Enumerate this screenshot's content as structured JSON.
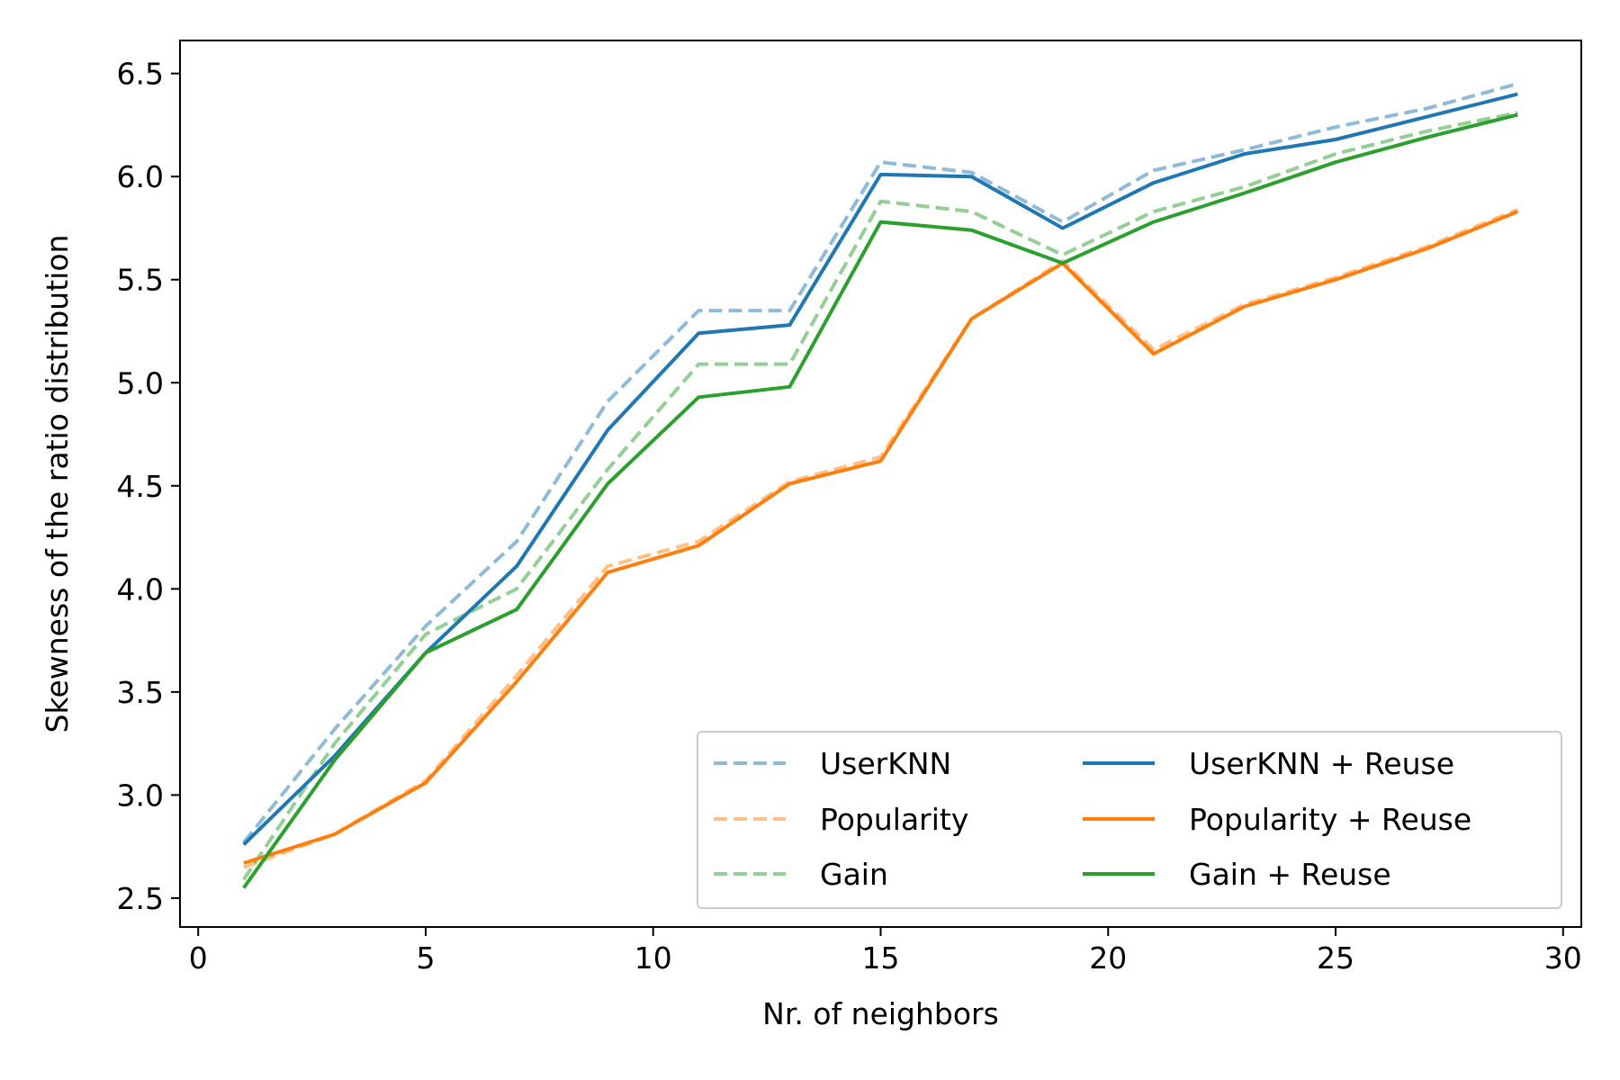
{
  "chart_data": {
    "type": "line",
    "xlabel": "Nr. of neighbors",
    "ylabel": "Skewness of the ratio distribution",
    "xlim": [
      -0.4,
      30.4
    ],
    "ylim": [
      2.36,
      6.66
    ],
    "xticks": [
      0,
      5,
      10,
      15,
      20,
      25,
      30
    ],
    "yticks": [
      2.5,
      3.0,
      3.5,
      4.0,
      4.5,
      5.0,
      5.5,
      6.0,
      6.5
    ],
    "x": [
      1,
      3,
      5,
      7,
      9,
      11,
      13,
      15,
      17,
      19,
      21,
      23,
      25,
      27,
      29
    ],
    "grid": false,
    "legend_position": "lower-right",
    "series": [
      {
        "name": "UserKNN",
        "style": "dashed",
        "color": "#1f77b4",
        "opacity": 0.5,
        "values": [
          2.77,
          3.32,
          3.82,
          4.23,
          4.91,
          5.35,
          5.35,
          6.07,
          6.02,
          5.78,
          6.03,
          6.13,
          6.24,
          6.33,
          6.45
        ]
      },
      {
        "name": "Popularity",
        "style": "dashed",
        "color": "#ff7f0e",
        "opacity": 0.5,
        "values": [
          2.65,
          2.81,
          3.07,
          3.58,
          4.11,
          4.23,
          4.52,
          4.64,
          5.31,
          5.59,
          5.16,
          5.38,
          5.51,
          5.66,
          5.84
        ]
      },
      {
        "name": "Gain",
        "style": "dashed",
        "color": "#2ca02c",
        "opacity": 0.5,
        "values": [
          2.59,
          3.25,
          3.78,
          4.0,
          4.58,
          5.09,
          5.09,
          5.88,
          5.83,
          5.62,
          5.83,
          5.95,
          6.11,
          6.22,
          6.31
        ]
      },
      {
        "name": "UserKNN + Reuse",
        "style": "solid",
        "color": "#1f77b4",
        "opacity": 1,
        "values": [
          2.76,
          3.19,
          3.69,
          4.11,
          4.77,
          5.24,
          5.28,
          6.01,
          6.0,
          5.75,
          5.97,
          6.11,
          6.18,
          6.29,
          6.4
        ]
      },
      {
        "name": "Popularity + Reuse",
        "style": "solid",
        "color": "#ff7f0e",
        "opacity": 1,
        "values": [
          2.67,
          2.81,
          3.06,
          3.55,
          4.08,
          4.21,
          4.51,
          4.62,
          5.31,
          5.58,
          5.14,
          5.37,
          5.5,
          5.65,
          5.83
        ]
      },
      {
        "name": "Gain + Reuse",
        "style": "solid",
        "color": "#2ca02c",
        "opacity": 1,
        "values": [
          2.55,
          3.17,
          3.69,
          3.9,
          4.51,
          4.93,
          4.98,
          5.78,
          5.74,
          5.58,
          5.78,
          5.92,
          6.07,
          6.19,
          6.3
        ]
      }
    ]
  }
}
